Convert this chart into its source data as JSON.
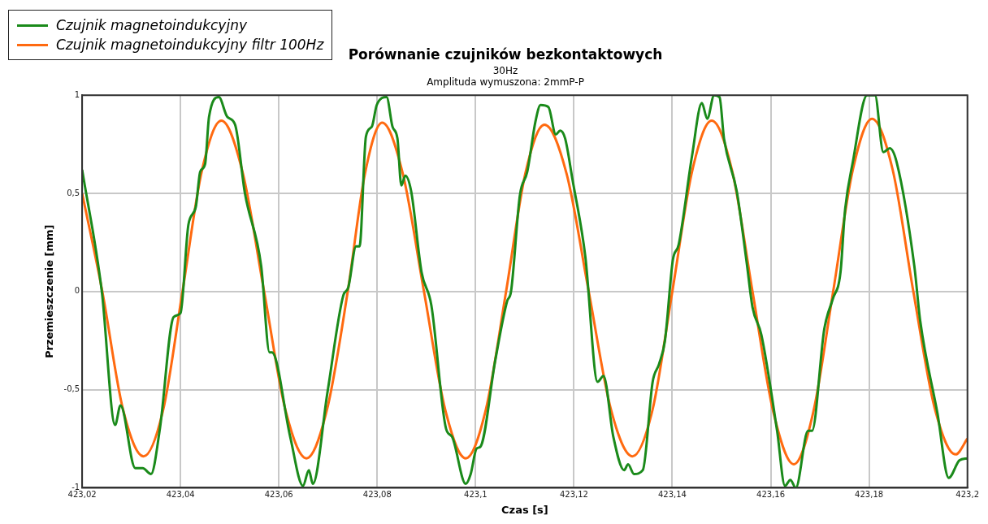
{
  "chart_data": {
    "type": "line",
    "title": "Porównanie czujników bezkontaktowych",
    "subtitle": "30Hz\nAmplituda wymuszona: 2mmP-P",
    "xlabel": "Czas [s]",
    "ylabel": "Przemieszczenie [mm]",
    "xlim": [
      423.02,
      423.2
    ],
    "xticks": [
      {
        "value": 423.02,
        "label": "423,02"
      },
      {
        "value": 423.04,
        "label": "423,04"
      },
      {
        "value": 423.06,
        "label": "423,06"
      },
      {
        "value": 423.08,
        "label": "423,08"
      },
      {
        "value": 423.1,
        "label": "423,1"
      },
      {
        "value": 423.12,
        "label": "423,12"
      },
      {
        "value": 423.14,
        "label": "423,14"
      },
      {
        "value": 423.16,
        "label": "423,16"
      },
      {
        "value": 423.18,
        "label": "423,18"
      },
      {
        "value": 423.2,
        "label": "423,2"
      }
    ],
    "ylim": [
      -1,
      1
    ],
    "yticks": [
      {
        "value": -1,
        "label": "-1"
      },
      {
        "value": -0.5,
        "label": "-0,5"
      },
      0,
      {
        "value": 0.5,
        "label": "0,5"
      },
      1
    ],
    "grid": true,
    "legend": "top left",
    "series": [
      {
        "name": "Czujnik magnetoindukcyjny",
        "color": "#1a8a1a",
        "x": [
          423.02,
          423.024,
          423.0267,
          423.0278,
          423.0308,
          423.0323,
          423.034,
          423.0358,
          423.0386,
          423.04,
          423.0416,
          423.0431,
          423.044,
          423.045,
          423.0458,
          423.0478,
          423.0495,
          423.0511,
          423.0531,
          423.0564,
          423.0581,
          423.0586,
          423.0623,
          423.0649,
          423.0661,
          423.0669,
          423.0699,
          423.0731,
          423.0741,
          423.0757,
          423.0764,
          423.0777,
          423.0789,
          423.0799,
          423.0819,
          423.0831,
          423.0841,
          423.0849,
          423.0857,
          423.0869,
          423.089,
          423.091,
          423.094,
          423.0952,
          423.098,
          423.099,
          423.1002,
          423.101,
          423.104,
          423.1064,
          423.1072,
          423.109,
          423.1105,
          423.1122,
          423.1132,
          423.1148,
          423.1163,
          423.1172,
          423.1182,
          423.1197,
          423.1223,
          423.1248,
          423.126,
          423.128,
          423.1302,
          423.131,
          423.1322,
          423.134,
          423.136,
          423.1373,
          423.1385,
          423.1401,
          423.1413,
          423.144,
          423.146,
          423.1471,
          423.1485,
          423.1496,
          423.1505,
          423.1531,
          423.1551,
          423.1563,
          423.1581,
          423.1613,
          423.1629,
          423.164,
          423.1651,
          423.1676,
          423.1684,
          423.1709,
          423.1726,
          423.1742,
          423.1751,
          423.1767,
          423.1796,
          423.1812,
          423.1829,
          423.1842,
          423.1856,
          423.1892,
          423.1904,
          423.1939,
          423.1962,
          423.1984,
          423.2
        ],
        "values": [
          0.62,
          0.0,
          -0.68,
          -0.58,
          -0.9,
          -0.9,
          -0.93,
          -0.7,
          -0.13,
          -0.11,
          0.34,
          0.43,
          0.61,
          0.65,
          0.89,
          0.99,
          0.89,
          0.85,
          0.5,
          0.13,
          -0.31,
          -0.31,
          -0.74,
          -0.99,
          -0.91,
          -0.98,
          -0.51,
          -0.02,
          0.02,
          0.23,
          0.23,
          0.79,
          0.84,
          0.95,
          0.99,
          0.84,
          0.78,
          0.54,
          0.59,
          0.51,
          0.1,
          -0.07,
          -0.7,
          -0.74,
          -0.98,
          -0.93,
          -0.8,
          -0.79,
          -0.35,
          -0.05,
          0.0,
          0.49,
          0.61,
          0.87,
          0.95,
          0.94,
          0.8,
          0.82,
          0.78,
          0.57,
          0.18,
          -0.46,
          -0.43,
          -0.74,
          -0.91,
          -0.88,
          -0.93,
          -0.91,
          -0.46,
          -0.37,
          -0.25,
          0.16,
          0.24,
          0.69,
          0.96,
          0.88,
          1.0,
          0.99,
          0.78,
          0.51,
          0.15,
          -0.08,
          -0.22,
          -0.71,
          -0.99,
          -0.96,
          -1.0,
          -0.71,
          -0.71,
          -0.19,
          -0.04,
          0.1,
          0.41,
          0.66,
          1.0,
          1.0,
          0.71,
          0.73,
          0.66,
          0.13,
          -0.15,
          -0.62,
          -0.95,
          -0.86,
          -0.85
        ]
      },
      {
        "name": "Czujnik magnetoindukcyjny filtr 100Hz",
        "color": "#ff6a10",
        "x": [
          423.02,
          423.0241,
          423.0283,
          423.0325,
          423.0365,
          423.0404,
          423.0443,
          423.0483,
          423.0526,
          423.057,
          423.0613,
          423.0656,
          423.0698,
          423.074,
          423.0775,
          423.081,
          423.0852,
          423.0895,
          423.0938,
          423.098,
          423.1021,
          423.1062,
          423.1101,
          423.114,
          423.1185,
          423.123,
          423.1275,
          423.1319,
          423.136,
          423.14,
          423.144,
          423.148,
          423.1522,
          423.1563,
          423.1605,
          423.1647,
          423.1687,
          423.1727,
          423.1767,
          423.1806,
          423.1848,
          423.189,
          423.1933,
          423.1976,
          423.2
        ],
        "values": [
          0.5,
          0.0,
          -0.6,
          -0.84,
          -0.6,
          0.0,
          0.61,
          0.87,
          0.61,
          0.0,
          -0.6,
          -0.85,
          -0.6,
          0.0,
          0.6,
          0.86,
          0.6,
          0.0,
          -0.6,
          -0.85,
          -0.6,
          0.0,
          0.6,
          0.85,
          0.6,
          0.0,
          -0.6,
          -0.84,
          -0.6,
          0.0,
          0.61,
          0.87,
          0.61,
          0.0,
          -0.61,
          -0.88,
          -0.61,
          0.0,
          0.62,
          0.88,
          0.62,
          0.0,
          -0.59,
          -0.83,
          -0.75
        ]
      }
    ]
  }
}
